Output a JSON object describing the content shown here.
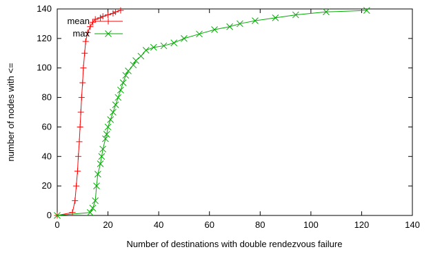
{
  "chart_data": {
    "type": "line",
    "xlabel": "Number of destinations with double rendezvous failure",
    "ylabel": "number of nodes with <=",
    "xlim": [
      0,
      140
    ],
    "ylim": [
      0,
      140
    ],
    "xticks": [
      0,
      20,
      40,
      60,
      80,
      100,
      120,
      140
    ],
    "yticks": [
      0,
      20,
      40,
      60,
      80,
      100,
      120,
      140
    ],
    "grid": false,
    "legend_position": "top-left",
    "series": [
      {
        "name": "mean",
        "color": "#ff0000",
        "marker": "plus",
        "points": [
          [
            0,
            0
          ],
          [
            6,
            2
          ],
          [
            7,
            10
          ],
          [
            7.5,
            20
          ],
          [
            8,
            30
          ],
          [
            8.3,
            40
          ],
          [
            8.7,
            50
          ],
          [
            9,
            60
          ],
          [
            9.3,
            70
          ],
          [
            9.6,
            80
          ],
          [
            10,
            90
          ],
          [
            10.3,
            100
          ],
          [
            10.8,
            110
          ],
          [
            11.2,
            118
          ],
          [
            12,
            124
          ],
          [
            13,
            128
          ],
          [
            14,
            131
          ],
          [
            15,
            133
          ],
          [
            17,
            134
          ],
          [
            18,
            135
          ],
          [
            20,
            136
          ],
          [
            22,
            137
          ],
          [
            23,
            138
          ],
          [
            25,
            139
          ]
        ]
      },
      {
        "name": "max",
        "color": "#00aa00",
        "marker": "cross",
        "points": [
          [
            0,
            0
          ],
          [
            13,
            2
          ],
          [
            14,
            5
          ],
          [
            15,
            10
          ],
          [
            15.5,
            20
          ],
          [
            16,
            28
          ],
          [
            17,
            35
          ],
          [
            17.5,
            40
          ],
          [
            18,
            45
          ],
          [
            19,
            52
          ],
          [
            19.5,
            55
          ],
          [
            20,
            60
          ],
          [
            21,
            65
          ],
          [
            22,
            70
          ],
          [
            23,
            75
          ],
          [
            24,
            80
          ],
          [
            25,
            85
          ],
          [
            26,
            90
          ],
          [
            27,
            95
          ],
          [
            28,
            98
          ],
          [
            30,
            102
          ],
          [
            31,
            105
          ],
          [
            33,
            108
          ],
          [
            35,
            112
          ],
          [
            38,
            114
          ],
          [
            42,
            115
          ],
          [
            46,
            117
          ],
          [
            50,
            120
          ],
          [
            56,
            123
          ],
          [
            62,
            126
          ],
          [
            68,
            128
          ],
          [
            72,
            130
          ],
          [
            78,
            132
          ],
          [
            86,
            134
          ],
          [
            94,
            136
          ],
          [
            106,
            138
          ],
          [
            122,
            139
          ]
        ]
      }
    ]
  }
}
